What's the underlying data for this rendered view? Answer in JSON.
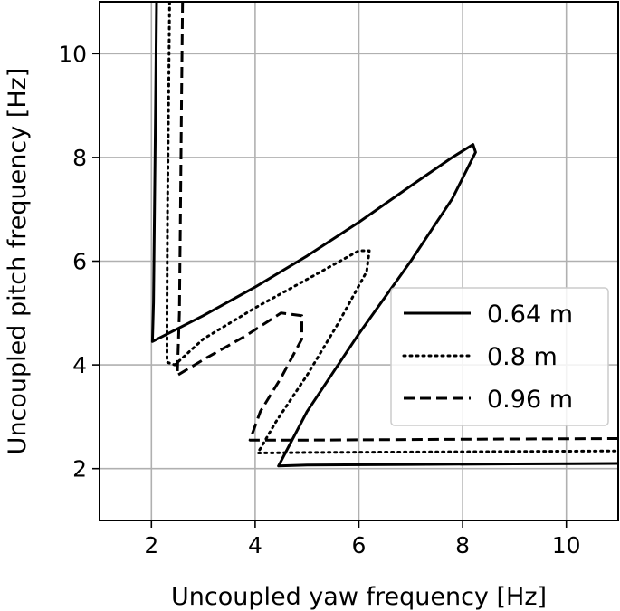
{
  "chart_data": {
    "type": "line",
    "xlabel": "Uncoupled yaw frequency [Hz]",
    "ylabel": "Uncoupled pitch frequency [Hz]",
    "xlim": [
      1,
      11
    ],
    "ylim": [
      1,
      11
    ],
    "xticks": [
      2,
      4,
      6,
      8,
      10
    ],
    "yticks": [
      2,
      4,
      6,
      8,
      10
    ],
    "grid": true,
    "legend_position": "center-right",
    "series": [
      {
        "name": "0.64 m",
        "style": "solid",
        "points": [
          [
            2.1,
            11.0
          ],
          [
            2.08,
            9.0
          ],
          [
            2.06,
            7.0
          ],
          [
            2.04,
            5.2
          ],
          [
            2.02,
            4.45
          ],
          [
            3.0,
            4.95
          ],
          [
            4.0,
            5.5
          ],
          [
            5.0,
            6.1
          ],
          [
            6.0,
            6.75
          ],
          [
            7.0,
            7.45
          ],
          [
            7.8,
            8.0
          ],
          [
            8.2,
            8.25
          ],
          [
            8.25,
            8.1
          ],
          [
            7.8,
            7.2
          ],
          [
            7.0,
            6.0
          ],
          [
            6.0,
            4.6
          ],
          [
            5.0,
            3.1
          ],
          [
            4.45,
            2.05
          ],
          [
            5.0,
            2.07
          ],
          [
            7.0,
            2.08
          ],
          [
            9.0,
            2.09
          ],
          [
            11.0,
            2.1
          ]
        ]
      },
      {
        "name": "0.8 m",
        "style": "dotted",
        "points": [
          [
            2.35,
            11.0
          ],
          [
            2.33,
            9.0
          ],
          [
            2.31,
            7.0
          ],
          [
            2.3,
            5.0
          ],
          [
            2.3,
            4.05
          ],
          [
            2.45,
            4.0
          ],
          [
            3.0,
            4.5
          ],
          [
            4.0,
            5.1
          ],
          [
            5.0,
            5.65
          ],
          [
            6.0,
            6.2
          ],
          [
            6.2,
            6.2
          ],
          [
            6.15,
            5.8
          ],
          [
            5.6,
            4.8
          ],
          [
            5.0,
            3.8
          ],
          [
            4.4,
            2.9
          ],
          [
            4.05,
            2.3
          ],
          [
            5.0,
            2.31
          ],
          [
            7.0,
            2.32
          ],
          [
            9.0,
            2.33
          ],
          [
            11.0,
            2.34
          ]
        ]
      },
      {
        "name": "0.96 m",
        "style": "dashed",
        "points": [
          [
            2.6,
            11.0
          ],
          [
            2.58,
            9.0
          ],
          [
            2.56,
            7.0
          ],
          [
            2.54,
            5.0
          ],
          [
            2.5,
            3.8
          ],
          [
            3.0,
            4.1
          ],
          [
            3.8,
            4.55
          ],
          [
            4.5,
            5.0
          ],
          [
            4.9,
            4.95
          ],
          [
            4.9,
            4.5
          ],
          [
            4.5,
            3.75
          ],
          [
            4.1,
            3.1
          ],
          [
            3.9,
            2.55
          ],
          [
            5.0,
            2.55
          ],
          [
            7.0,
            2.56
          ],
          [
            9.0,
            2.57
          ],
          [
            11.0,
            2.58
          ]
        ]
      }
    ]
  }
}
